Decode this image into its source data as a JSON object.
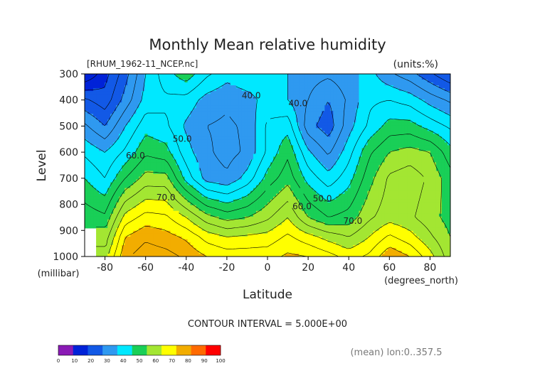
{
  "chart_data": {
    "type": "contour",
    "title": "Monthly Mean relative humidity",
    "source_label": "[RHUM_1962-11_NCEP.nc]",
    "units_label": "(units:%)",
    "xlabel": "Latitude",
    "x_units_label": "(degrees_north)",
    "ylabel": "Level",
    "y_units_label": "(millibar)",
    "xlim": [
      -90,
      90
    ],
    "ylim": [
      1000,
      300
    ],
    "x_ticks": [
      "-80",
      "-60",
      "-40",
      "-20",
      "0",
      "20",
      "40",
      "60",
      "80"
    ],
    "y_ticks": [
      "300",
      "400",
      "500",
      "600",
      "700",
      "800",
      "900",
      "1000"
    ],
    "contour_interval_text": "CONTOUR INTERVAL = 5.000E+00",
    "contour_interval": 5,
    "contour_labels": [
      {
        "text": "40.0",
        "lat": -8,
        "level": 385
      },
      {
        "text": "40.0",
        "lat": 15,
        "level": 415
      },
      {
        "text": "50.0",
        "lat": -42,
        "level": 550
      },
      {
        "text": "50.0",
        "lat": 27,
        "level": 780
      },
      {
        "text": "60.0",
        "lat": -65,
        "level": 615
      },
      {
        "text": "60.0",
        "lat": 17,
        "level": 810
      },
      {
        "text": "70.0",
        "lat": -50,
        "level": 775
      },
      {
        "text": "70.0",
        "lat": 42,
        "level": 865
      }
    ],
    "footer_text": "(mean) lon:0..357.5",
    "colorbar": {
      "ticks": [
        "0",
        "10",
        "20",
        "30",
        "40",
        "50",
        "60",
        "70",
        "80",
        "90",
        "100"
      ],
      "colors": [
        "#8a1ab5",
        "#0022d8",
        "#1259e6",
        "#2f99f0",
        "#00e8ff",
        "#19cf57",
        "#a3e632",
        "#ffff00",
        "#f2ad00",
        "#ff6a00",
        "#ff0000"
      ]
    },
    "latitudes": [
      -90,
      -80,
      -70,
      -60,
      -50,
      -40,
      -30,
      -20,
      -10,
      0,
      10,
      20,
      30,
      40,
      50,
      60,
      70,
      80,
      90
    ],
    "levels": [
      1000,
      925,
      850,
      700,
      600,
      500,
      400,
      300
    ],
    "rh_values": [
      [
        null,
        68,
        84,
        88,
        87,
        84,
        80,
        78,
        78,
        78,
        81,
        80,
        77,
        73,
        76,
        84,
        80,
        72,
        62
      ],
      [
        null,
        62,
        80,
        84,
        82,
        79,
        73,
        70,
        71,
        72,
        76,
        72,
        68,
        65,
        70,
        76,
        72,
        66,
        60
      ],
      [
        58,
        56,
        72,
        77,
        76,
        70,
        62,
        58,
        60,
        64,
        70,
        60,
        55,
        57,
        64,
        68,
        66,
        62,
        58
      ],
      [
        50,
        45,
        55,
        62,
        62,
        48,
        38,
        36,
        42,
        52,
        58,
        48,
        42,
        48,
        58,
        66,
        68,
        64,
        57
      ],
      [
        44,
        40,
        46,
        54,
        52,
        42,
        36,
        33,
        36,
        46,
        54,
        41,
        34,
        43,
        54,
        60,
        62,
        60,
        52
      ],
      [
        36,
        30,
        40,
        48,
        46,
        39,
        35,
        34,
        36,
        46,
        48,
        32,
        27,
        38,
        46,
        52,
        52,
        48,
        44
      ],
      [
        26,
        22,
        32,
        42,
        44,
        43,
        38,
        36,
        38,
        42,
        40,
        35,
        30,
        36,
        44,
        45,
        43,
        38,
        34
      ],
      [
        10,
        18,
        28,
        40,
        48,
        53,
        46,
        42,
        44,
        43,
        40,
        37,
        36,
        38,
        42,
        36,
        32,
        26,
        20
      ]
    ]
  }
}
